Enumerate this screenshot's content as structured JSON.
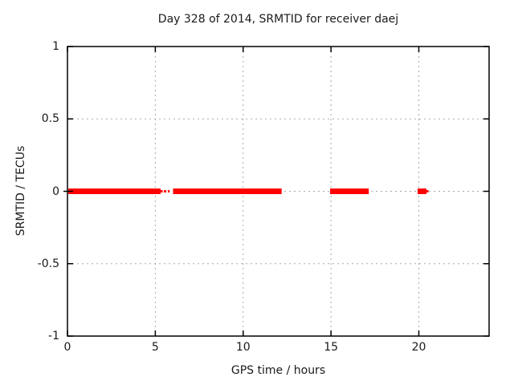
{
  "chart_data": {
    "type": "line",
    "title": "Day 328 of 2014, SRMTID for receiver daej",
    "xlabel": "GPS time / hours",
    "ylabel": "SRMTID / TECUs",
    "xlim": [
      0,
      24
    ],
    "ylim": [
      -1,
      1
    ],
    "xticks": [
      0,
      5,
      10,
      15,
      20
    ],
    "xtick_labels": [
      "0",
      "5",
      "10",
      "15",
      "20"
    ],
    "yticks": [
      1,
      0.5,
      0,
      -0.5,
      -1
    ],
    "ytick_labels": [
      "1",
      "0.5",
      "0",
      "-0.5",
      "-1"
    ],
    "grid": true,
    "grid_xticks_with_lines": [
      5,
      10,
      15,
      20
    ],
    "grid_yticks_with_lines": [
      0.5,
      0,
      -0.5
    ],
    "legend": false,
    "series": [
      {
        "name": "SRMTID",
        "color": "#ff0000",
        "y_value": 0,
        "segments_hours": [
          [
            0.05,
            5.3
          ],
          [
            6.01,
            12.19
          ],
          [
            14.95,
            17.15
          ],
          [
            19.93,
            20.43
          ]
        ],
        "thin_dashes_hours": [
          [
            5.3,
            5.42
          ],
          [
            5.49,
            5.62
          ],
          [
            5.71,
            5.81
          ],
          [
            20.43,
            20.55
          ]
        ]
      }
    ],
    "colors": {
      "series": "#ff0000",
      "grid": "#a9a9a9",
      "border": "#000000",
      "background": "#ffffff",
      "text": "#1a1a1a"
    }
  },
  "layout_note": "single gnuplot-style scatter of SRMTID near zero"
}
